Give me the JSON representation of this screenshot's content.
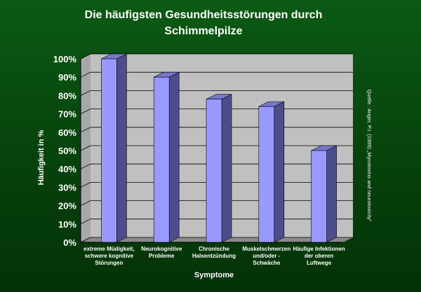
{
  "chart_data": {
    "type": "bar",
    "title_lines": [
      "Die häufigsten Gesundheitsstörungen durch",
      "Schimmelpilze"
    ],
    "categories": [
      [
        "extreme Müdigkeit,",
        "schwere kognitive",
        "Störungen"
      ],
      [
        "Neurokognitive",
        "Probleme"
      ],
      [
        "Chronische",
        "Halsentzündung"
      ],
      [
        "Muskelschmerzen",
        "und/oder -",
        "Schwäche"
      ],
      [
        "Häufige Infektionen",
        "der oberen",
        "Luftwege"
      ]
    ],
    "values": [
      100,
      90,
      78,
      74,
      50
    ],
    "ylim": [
      0,
      100
    ],
    "y_ticks": [
      "0%",
      "10%",
      "20%",
      "30%",
      "40%",
      "50%",
      "60%",
      "70%",
      "80%",
      "90%",
      "100%"
    ],
    "xlabel": "Symptome",
    "ylabel": "Häufigkeit in %",
    "source_note": "Quelle : Anger, P.I. (1995) „Mycotoxins and neurotoxicity\"",
    "grid": true,
    "colors": {
      "bar_front": "#9999ff",
      "bar_side": "#4d4d8c",
      "bar_top": "#7777cc",
      "plot_back": "#c0c0c0",
      "plot_floor": "#8a8a8a",
      "plot_wall": "#a8a8a8",
      "grid": "#000000"
    }
  }
}
